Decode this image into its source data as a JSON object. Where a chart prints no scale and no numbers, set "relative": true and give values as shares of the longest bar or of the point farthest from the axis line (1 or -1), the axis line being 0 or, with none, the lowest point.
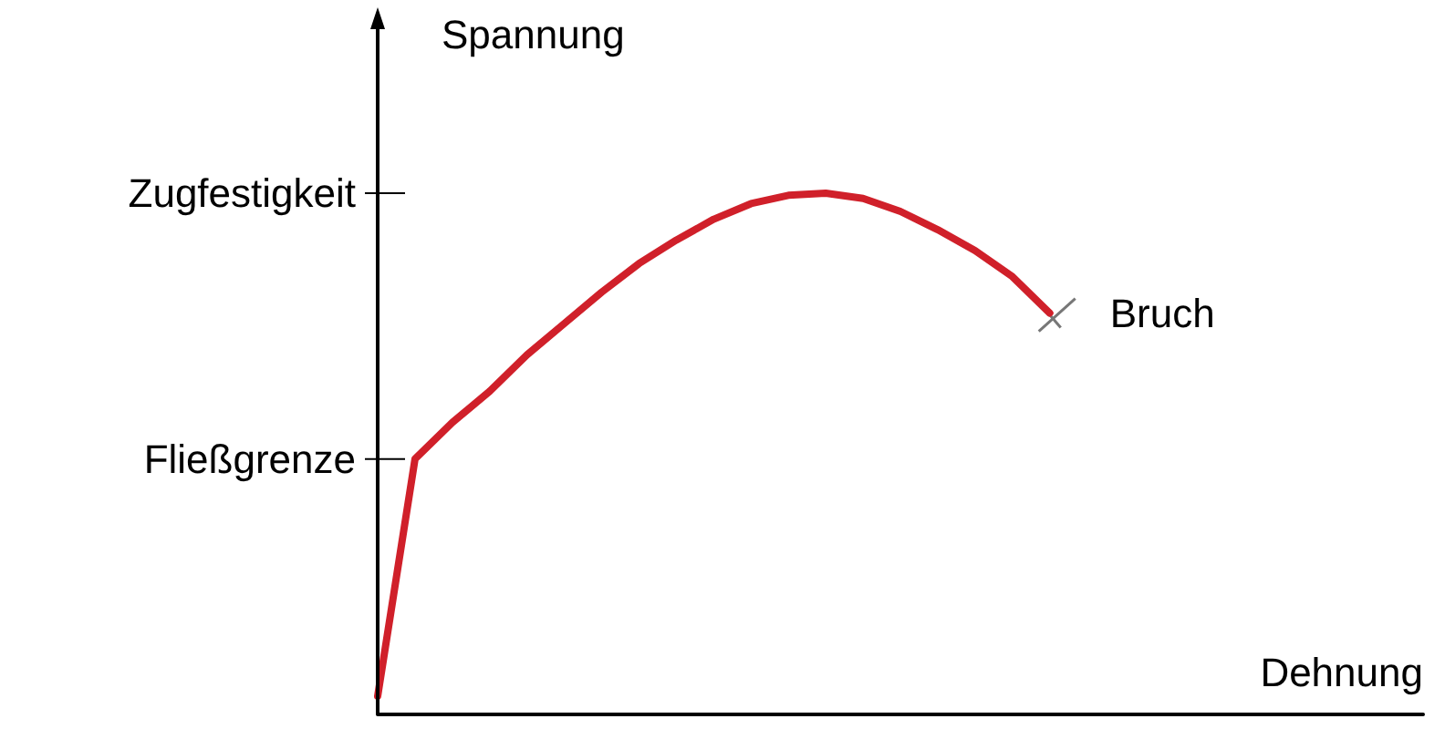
{
  "chart_data": {
    "type": "line",
    "relative": true,
    "xlabel": "Dehnung",
    "ylabel": "Spannung",
    "categories": [
      null,
      null,
      null,
      null,
      null,
      null,
      null,
      null,
      null,
      null,
      null,
      null,
      null,
      null,
      null,
      null,
      null,
      null,
      null,
      null,
      null,
      null,
      null,
      null,
      null,
      null,
      null,
      null,
      null
    ],
    "series": [
      {
        "color": "#d0202a",
        "values": [
          0.035,
          0.49,
          0.56,
          0.62,
          0.69,
          0.75,
          0.81,
          0.865,
          0.91,
          0.95,
          0.98,
          0.996,
          1,
          0.99,
          0.965,
          0.93,
          0.89,
          0.84,
          0.77,
          null,
          null,
          null,
          null,
          null,
          null,
          null,
          null,
          null,
          null
        ]
      }
    ],
    "ref_lines": [
      {
        "axis": "y",
        "value": 1,
        "label": "Zugfestigkeit"
      },
      {
        "axis": "y",
        "value": 0.49,
        "label": "Fließgrenze"
      }
    ],
    "annotations": [
      "Bruch"
    ],
    "grid": false,
    "marker": "none",
    "line_style": "solid"
  }
}
